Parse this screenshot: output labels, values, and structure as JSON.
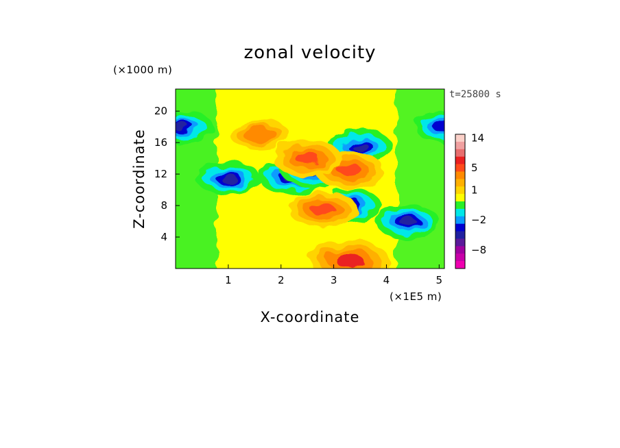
{
  "chart_data": {
    "type": "heatmap",
    "title": "zonal velocity",
    "xlabel": "X-coordinate",
    "ylabel": "Z-coordinate",
    "x_unit": "(×1E5 m)",
    "y_unit": "(×1000 m)",
    "time_label": "t=25800 s",
    "xlim": [
      0,
      5.1
    ],
    "ylim": [
      0,
      22.8
    ],
    "x_ticks": [
      1,
      2,
      3,
      4,
      5
    ],
    "y_ticks": [
      4,
      8,
      12,
      16,
      20
    ],
    "colorbar": {
      "tick_labels": [
        {
          "value": 14,
          "label": "14"
        },
        {
          "value": 5,
          "label": "5"
        },
        {
          "value": 1,
          "label": "1"
        },
        {
          "value": -2,
          "label": "−2"
        },
        {
          "value": -8,
          "label": "−8"
        }
      ],
      "levels": [
        {
          "value": 15,
          "color": "#fbd0c8"
        },
        {
          "value": 13,
          "color": "#f0a0a0"
        },
        {
          "value": 10,
          "color": "#e86e6e"
        },
        {
          "value": 7,
          "color": "#ea2020"
        },
        {
          "value": 5,
          "color": "#ff4a1a"
        },
        {
          "value": 3,
          "color": "#ff8a00"
        },
        {
          "value": 2,
          "color": "#ffb000"
        },
        {
          "value": 1,
          "color": "#ffd400"
        },
        {
          "value": 0.5,
          "color": "#ffff00"
        },
        {
          "value": 0,
          "color": "#28f028"
        },
        {
          "value": -1,
          "color": "#00e8e8"
        },
        {
          "value": -2,
          "color": "#0a9cff"
        },
        {
          "value": -3,
          "color": "#0000d0"
        },
        {
          "value": -4,
          "color": "#2020a0"
        },
        {
          "value": -6,
          "color": "#5a1a9a"
        },
        {
          "value": -8,
          "color": "#a000a0"
        },
        {
          "value": -10,
          "color": "#c800a8"
        },
        {
          "value": -12,
          "color": "#f000b0"
        }
      ]
    },
    "field_features": [
      {
        "x": 0.1,
        "z": 18.0,
        "value": -4
      },
      {
        "x": 1.0,
        "z": 11.5,
        "value": -4
      },
      {
        "x": 2.2,
        "z": 11.5,
        "value": -4
      },
      {
        "x": 2.6,
        "z": 12.5,
        "value": -4
      },
      {
        "x": 3.5,
        "z": 15.5,
        "value": -4
      },
      {
        "x": 4.4,
        "z": 6.0,
        "value": -4
      },
      {
        "x": 3.3,
        "z": 8.0,
        "value": -4
      },
      {
        "x": 5.1,
        "z": 18.0,
        "value": -3
      },
      {
        "x": 3.3,
        "z": 12.5,
        "value": 5
      },
      {
        "x": 2.5,
        "z": 14.0,
        "value": 5
      },
      {
        "x": 1.6,
        "z": 17.0,
        "value": 3
      },
      {
        "x": 2.8,
        "z": 7.5,
        "value": 5
      },
      {
        "x": 3.3,
        "z": 1.0,
        "value": 7
      }
    ]
  }
}
